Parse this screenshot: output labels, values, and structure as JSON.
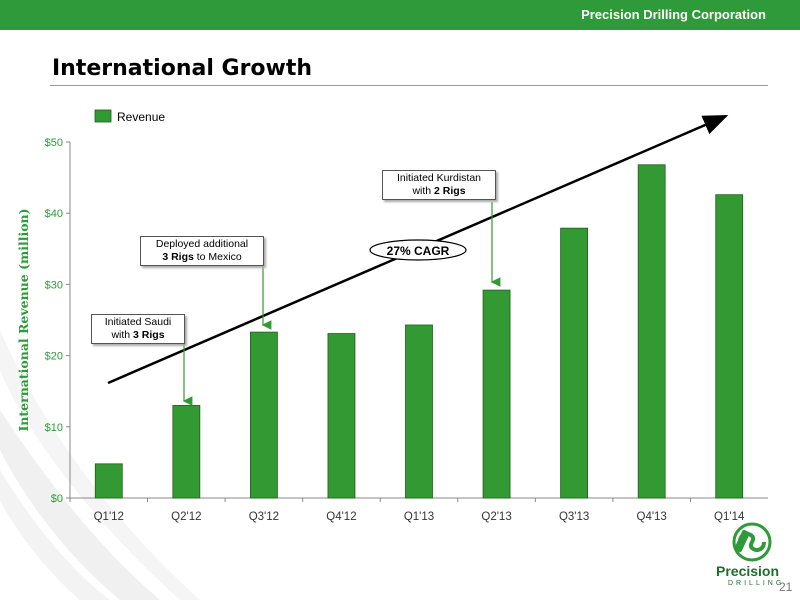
{
  "header": {
    "company": "Precision Drilling Corporation"
  },
  "title": "International Growth",
  "legend": {
    "label": "Revenue",
    "color": "#339933"
  },
  "annotations": [
    {
      "line1": "Initiated Saudi",
      "pre": "with ",
      "bold": "3 Rigs",
      "post": ""
    },
    {
      "line1": "Deployed additional",
      "pre": "",
      "bold": "3 Rigs",
      "post": " to Mexico"
    },
    {
      "line1": "Initiated Kurdistan",
      "pre": "with ",
      "bold": "2 Rigs",
      "post": ""
    }
  ],
  "cagr_label": "27% CAGR",
  "logo": {
    "word": "Precision",
    "sub": "DRILLING"
  },
  "page_number": "21",
  "chart_data": {
    "type": "bar",
    "categories": [
      "Q1'12",
      "Q2'12",
      "Q3'12",
      "Q4'12",
      "Q1'13",
      "Q2'13",
      "Q3'13",
      "Q4'13",
      "Q1'14"
    ],
    "series": [
      {
        "name": "Revenue",
        "values": [
          4.8,
          13.0,
          23.3,
          23.1,
          24.3,
          29.2,
          37.9,
          46.8,
          42.6
        ]
      }
    ],
    "ylabel": "International Revenue (million)",
    "yticks": [
      "$0",
      "$10",
      "$20",
      "$30",
      "$40",
      "$50"
    ],
    "ylim": [
      0,
      50
    ],
    "grid": false,
    "legend_position": "top-left"
  }
}
